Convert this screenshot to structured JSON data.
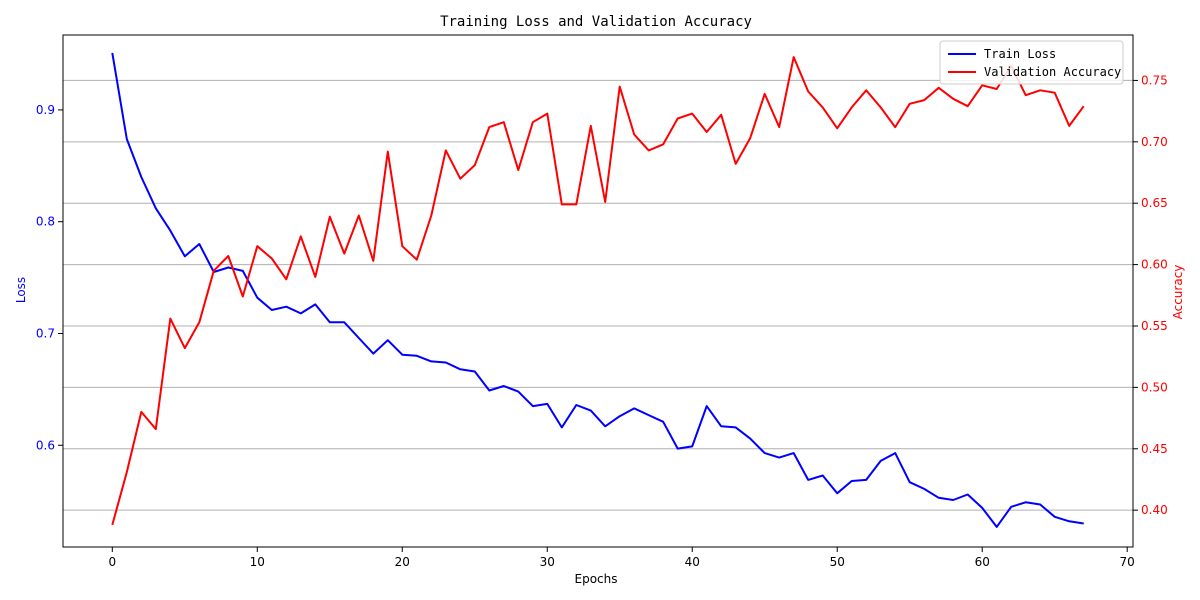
{
  "chart_data": {
    "type": "line",
    "title": "Training Loss and Validation Accuracy",
    "xlabel": "Epochs",
    "ylabel_left": "Loss",
    "ylabel_right": "Accuracy",
    "xlim": [
      -3.4,
      70.4
    ],
    "ylim_left": [
      0.509,
      0.967
    ],
    "ylim_right": [
      0.37,
      0.787
    ],
    "x_ticks": [
      0,
      10,
      20,
      30,
      40,
      50,
      60,
      70
    ],
    "y_left_ticks": [
      0.6,
      0.7,
      0.8,
      0.9
    ],
    "y_right_ticks": [
      0.4,
      0.45,
      0.5,
      0.55,
      0.6,
      0.65,
      0.7,
      0.75
    ],
    "grid": "horizontal (right axis)",
    "legend_position": "top-right",
    "colors": {
      "loss": "#0000ff",
      "accuracy": "#ff0000",
      "axis": "#000000",
      "grid": "#b0b0b0"
    },
    "series": [
      {
        "name": "Train Loss",
        "axis": "left",
        "x": [
          0,
          1,
          2,
          3,
          4,
          5,
          6,
          7,
          8,
          9,
          10,
          11,
          12,
          13,
          14,
          15,
          16,
          17,
          18,
          19,
          20,
          21,
          22,
          23,
          24,
          25,
          26,
          27,
          28,
          29,
          30,
          31,
          32,
          33,
          34,
          35,
          36,
          37,
          38,
          39,
          40,
          41,
          42,
          43,
          44,
          45,
          46,
          47,
          48,
          49,
          50,
          51,
          52,
          53,
          54,
          55,
          56,
          57,
          58,
          59,
          60,
          61,
          62,
          63,
          64,
          65,
          66,
          67
        ],
        "values": [
          0.951,
          0.874,
          0.84,
          0.812,
          0.792,
          0.769,
          0.78,
          0.755,
          0.759,
          0.756,
          0.732,
          0.721,
          0.724,
          0.718,
          0.726,
          0.71,
          0.71,
          0.696,
          0.682,
          0.694,
          0.681,
          0.68,
          0.675,
          0.674,
          0.668,
          0.666,
          0.649,
          0.653,
          0.648,
          0.635,
          0.637,
          0.616,
          0.636,
          0.631,
          0.617,
          0.626,
          0.633,
          0.627,
          0.621,
          0.597,
          0.599,
          0.635,
          0.617,
          0.616,
          0.606,
          0.593,
          0.589,
          0.593,
          0.569,
          0.573,
          0.557,
          0.568,
          0.569,
          0.586,
          0.593,
          0.567,
          0.561,
          0.553,
          0.551,
          0.556,
          0.544,
          0.527,
          0.545,
          0.549,
          0.547,
          0.536,
          0.532,
          0.53
        ]
      },
      {
        "name": "Validation Accuracy",
        "axis": "right",
        "x": [
          0,
          1,
          2,
          3,
          4,
          5,
          6,
          7,
          8,
          9,
          10,
          11,
          12,
          13,
          14,
          15,
          16,
          17,
          18,
          19,
          20,
          21,
          22,
          23,
          24,
          25,
          26,
          27,
          28,
          29,
          30,
          31,
          32,
          33,
          34,
          35,
          36,
          37,
          38,
          39,
          40,
          41,
          42,
          43,
          44,
          45,
          46,
          47,
          48,
          49,
          50,
          51,
          52,
          53,
          54,
          55,
          56,
          57,
          58,
          59,
          60,
          61,
          62,
          63,
          64,
          65,
          66,
          67
        ],
        "values": [
          0.388,
          0.431,
          0.48,
          0.466,
          0.556,
          0.532,
          0.553,
          0.595,
          0.607,
          0.574,
          0.615,
          0.605,
          0.588,
          0.623,
          0.59,
          0.639,
          0.609,
          0.64,
          0.603,
          0.692,
          0.615,
          0.604,
          0.64,
          0.693,
          0.67,
          0.681,
          0.712,
          0.716,
          0.677,
          0.716,
          0.723,
          0.649,
          0.649,
          0.713,
          0.651,
          0.745,
          0.706,
          0.693,
          0.698,
          0.719,
          0.723,
          0.708,
          0.722,
          0.682,
          0.703,
          0.739,
          0.712,
          0.769,
          0.741,
          0.728,
          0.711,
          0.728,
          0.742,
          0.728,
          0.712,
          0.731,
          0.734,
          0.744,
          0.735,
          0.729,
          0.746,
          0.743,
          0.762,
          0.738,
          0.742,
          0.74,
          0.713,
          0.729
        ]
      }
    ]
  }
}
